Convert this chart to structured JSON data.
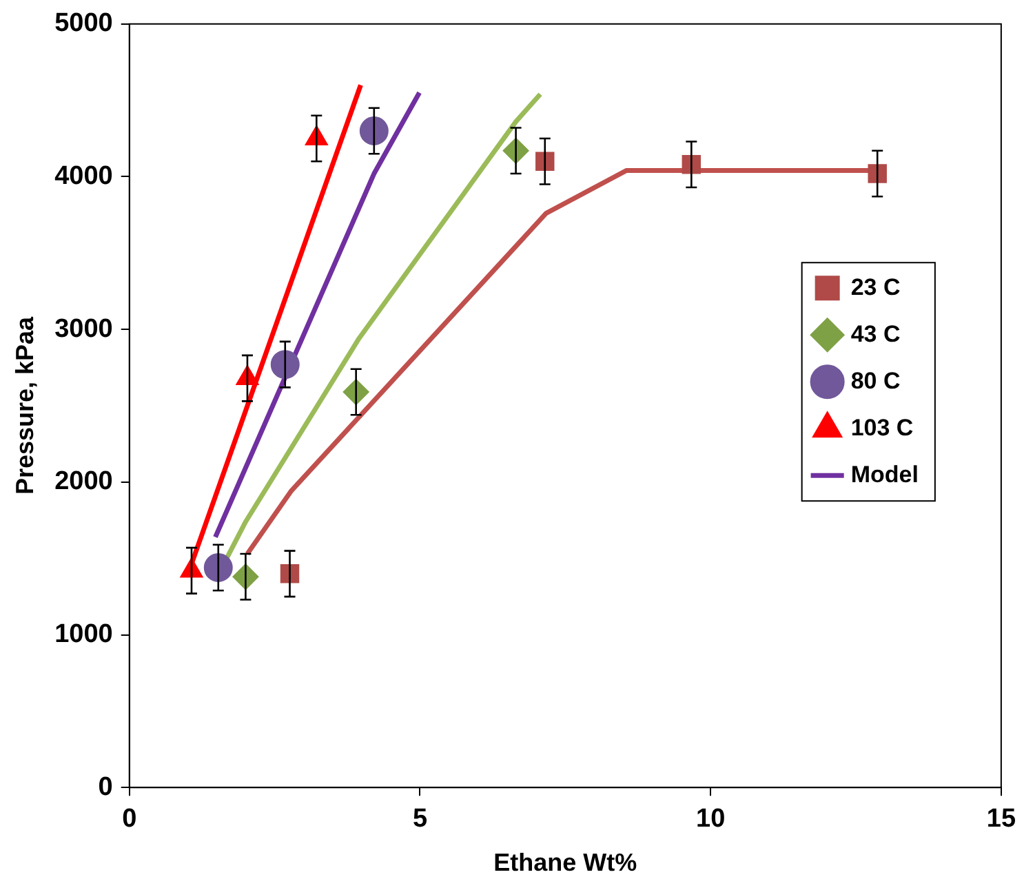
{
  "chart_data": {
    "type": "scatter",
    "xlabel": "Ethane Wt%",
    "ylabel": "Pressure, kPaa",
    "xlim": [
      0,
      15
    ],
    "xticks": [
      0,
      5,
      10,
      15
    ],
    "ylim": [
      0,
      5000
    ],
    "yticks": [
      0,
      1000,
      2000,
      3000,
      4000,
      5000
    ],
    "grid": false,
    "legend": "right",
    "series": [
      {
        "name": "23 C",
        "marker": "square",
        "color": "#b04a48",
        "x": [
          2.76,
          7.15,
          9.67,
          12.87
        ],
        "values": [
          1400,
          4100,
          4080,
          4020
        ],
        "errors": [
          150,
          150,
          150,
          150
        ]
      },
      {
        "name": "43 C",
        "marker": "diamond",
        "color": "#7fa145",
        "x": [
          2.0,
          3.9,
          6.65
        ],
        "values": [
          1380,
          2590,
          4170
        ],
        "errors": [
          150,
          150,
          150
        ]
      },
      {
        "name": "80 C",
        "marker": "circle",
        "color": "#71589a",
        "x": [
          1.53,
          2.68,
          4.21
        ],
        "values": [
          1440,
          2770,
          4300
        ],
        "errors": [
          150,
          150,
          150
        ]
      },
      {
        "name": "103 C",
        "marker": "triangle",
        "color": "#ff0000",
        "x": [
          1.07,
          2.03,
          3.22
        ],
        "values": [
          1420,
          2680,
          4250
        ],
        "errors": [
          150,
          150,
          150
        ]
      },
      {
        "type": "line",
        "color": "#ff0000",
        "x": [
          1.01,
          3.98
        ],
        "values": [
          1400,
          4600
        ]
      },
      {
        "name": "Model",
        "type": "line",
        "color": "#7030a0",
        "x": [
          1.48,
          4.21,
          4.99
        ],
        "values": [
          1640,
          4020,
          4550
        ]
      },
      {
        "type": "line",
        "color": "#9bbb59",
        "x": [
          1.66,
          2.0,
          3.95,
          6.65,
          7.07
        ],
        "values": [
          1490,
          1740,
          2940,
          4360,
          4540
        ]
      },
      {
        "type": "line",
        "color": "#c0504d",
        "x": [
          2.03,
          2.78,
          7.17,
          8.55,
          12.87
        ],
        "values": [
          1530,
          1940,
          3760,
          4040,
          4040
        ]
      }
    ]
  }
}
